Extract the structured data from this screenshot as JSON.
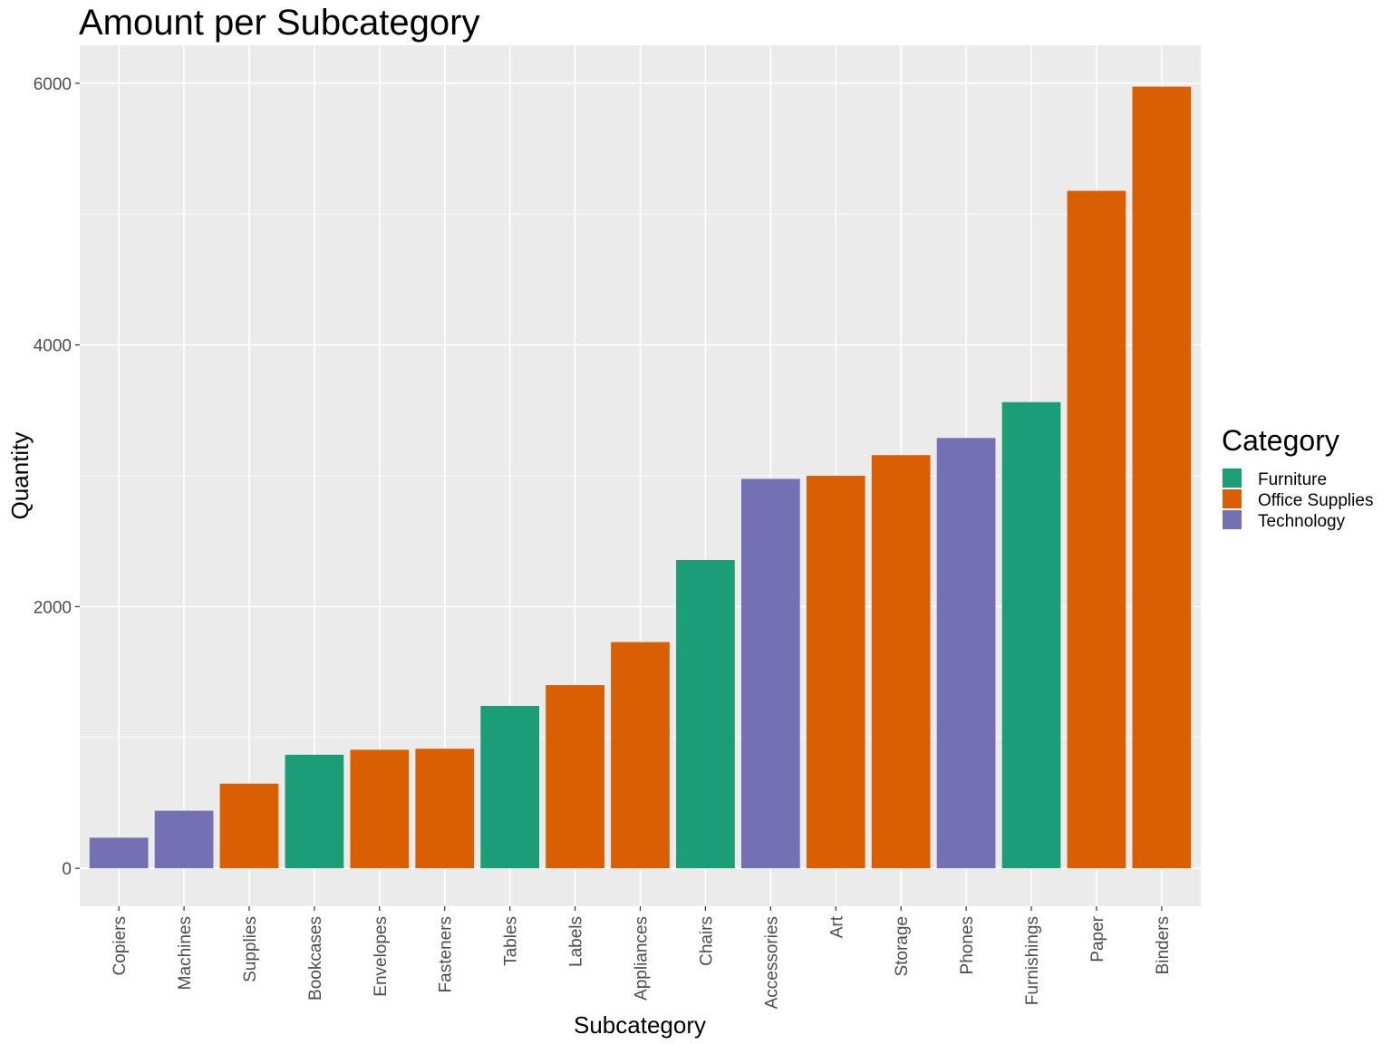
{
  "chart_data": {
    "type": "bar",
    "title": "Amount per Subcategory",
    "xlabel": "Subcategory",
    "ylabel": "Quantity",
    "ylim": [
      -290,
      6290
    ],
    "yticks": [
      0,
      2000,
      4000,
      6000
    ],
    "grid": true,
    "legend_placement": "right",
    "categories": [
      "Copiers",
      "Machines",
      "Supplies",
      "Bookcases",
      "Envelopes",
      "Fasteners",
      "Tables",
      "Labels",
      "Appliances",
      "Chairs",
      "Accessories",
      "Art",
      "Storage",
      "Phones",
      "Furnishings",
      "Paper",
      "Binders"
    ],
    "values": [
      234,
      440,
      647,
      868,
      906,
      914,
      1241,
      1400,
      1729,
      2356,
      2976,
      3000,
      3158,
      3289,
      3563,
      5178,
      5974
    ],
    "groups": [
      "Technology",
      "Technology",
      "Office Supplies",
      "Furniture",
      "Office Supplies",
      "Office Supplies",
      "Furniture",
      "Office Supplies",
      "Office Supplies",
      "Furniture",
      "Technology",
      "Office Supplies",
      "Office Supplies",
      "Technology",
      "Furniture",
      "Office Supplies",
      "Office Supplies"
    ],
    "legend": {
      "title": "Category",
      "entries": [
        {
          "name": "Furniture",
          "color": "#1b9e77"
        },
        {
          "name": "Office Supplies",
          "color": "#d95f02"
        },
        {
          "name": "Technology",
          "color": "#7570b3"
        }
      ]
    },
    "panel_background": "#ebebeb",
    "grid_color": "#ffffff"
  }
}
